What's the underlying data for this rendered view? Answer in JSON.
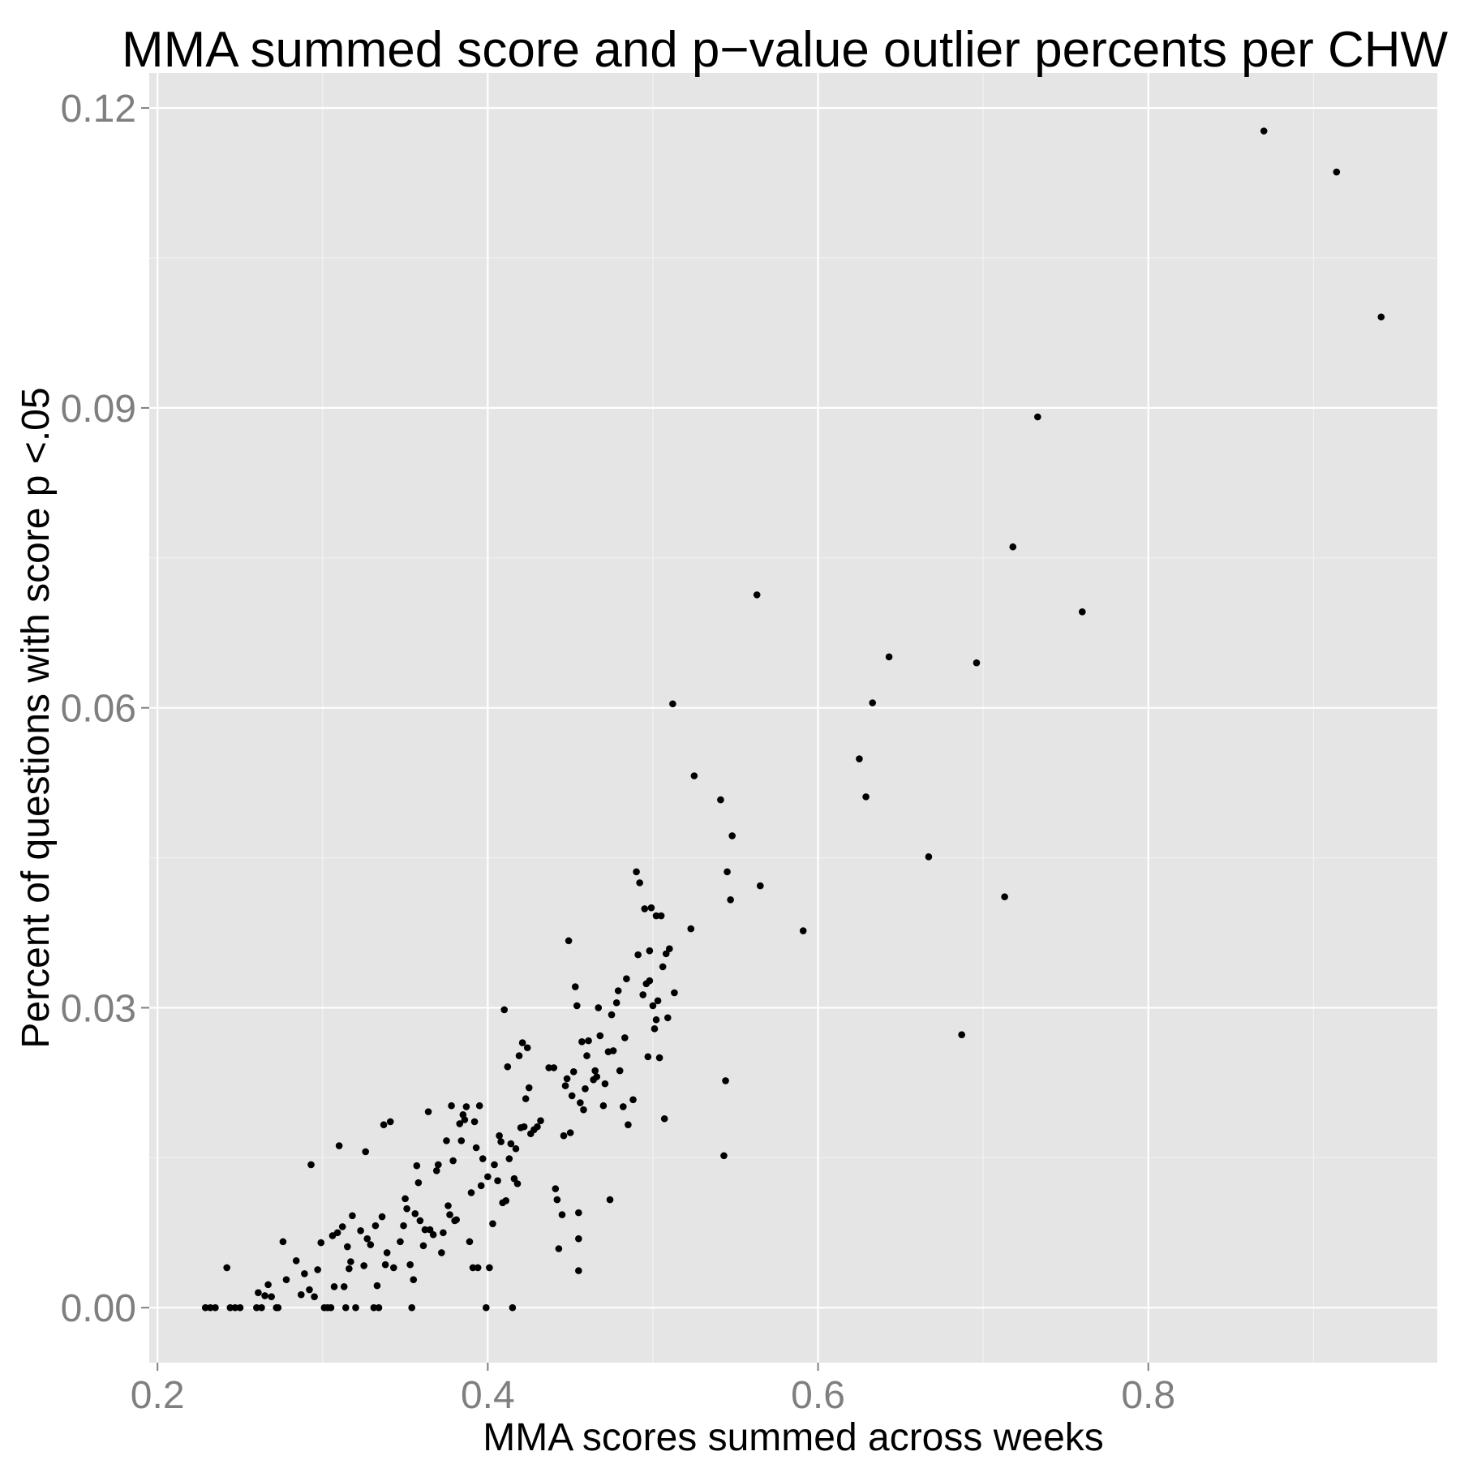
{
  "chart_data": {
    "type": "scatter",
    "title": "MMA summed score and p−value outlier percents per CHW",
    "xlabel": "MMA scores summed across weeks",
    "ylabel": "Percent of questions with score p <.05",
    "xlim": [
      0.195,
      0.975
    ],
    "ylim": [
      -0.0055,
      0.1235
    ],
    "x_ticks": [
      0.2,
      0.4,
      0.6,
      0.8
    ],
    "x_tick_labels": [
      "0.2",
      "0.4",
      "0.6",
      "0.8"
    ],
    "y_ticks": [
      0.0,
      0.03,
      0.06,
      0.09,
      0.12
    ],
    "y_tick_labels": [
      "0.00",
      "0.03",
      "0.06",
      "0.09",
      "0.12"
    ],
    "grid": true,
    "panel_color": "#e5e5e5",
    "point_color": "#000000",
    "series": [
      {
        "points": [
          [
            0.229,
            0.0
          ],
          [
            0.232,
            0.0
          ],
          [
            0.235,
            0.0
          ],
          [
            0.242,
            0.004
          ],
          [
            0.244,
            0.0
          ],
          [
            0.247,
            0.0
          ],
          [
            0.25,
            0.0
          ],
          [
            0.26,
            0.0
          ],
          [
            0.261,
            0.0015
          ],
          [
            0.263,
            0.0
          ],
          [
            0.265,
            0.0012
          ],
          [
            0.267,
            0.0023
          ],
          [
            0.269,
            0.0011
          ],
          [
            0.272,
            0.0
          ],
          [
            0.273,
            0.0
          ],
          [
            0.276,
            0.0066
          ],
          [
            0.278,
            0.0028
          ],
          [
            0.284,
            0.0047
          ],
          [
            0.287,
            0.0013
          ],
          [
            0.289,
            0.0034
          ],
          [
            0.292,
            0.0018
          ],
          [
            0.293,
            0.0143
          ],
          [
            0.295,
            0.0011
          ],
          [
            0.297,
            0.0038
          ],
          [
            0.299,
            0.0065
          ],
          [
            0.301,
            0.0
          ],
          [
            0.303,
            0.0
          ],
          [
            0.305,
            0.0
          ],
          [
            0.306,
            0.0072
          ],
          [
            0.307,
            0.0021
          ],
          [
            0.309,
            0.0075
          ],
          [
            0.31,
            0.0162
          ],
          [
            0.312,
            0.0081
          ],
          [
            0.313,
            0.0021
          ],
          [
            0.314,
            0.0
          ],
          [
            0.315,
            0.0061
          ],
          [
            0.316,
            0.0039
          ],
          [
            0.317,
            0.0046
          ],
          [
            0.318,
            0.0092
          ],
          [
            0.32,
            0.0
          ],
          [
            0.323,
            0.0077
          ],
          [
            0.325,
            0.0042
          ],
          [
            0.326,
            0.0156
          ],
          [
            0.327,
            0.0069
          ],
          [
            0.329,
            0.0063
          ],
          [
            0.331,
            0.0
          ],
          [
            0.332,
            0.0082
          ],
          [
            0.333,
            0.0022
          ],
          [
            0.334,
            0.0
          ],
          [
            0.336,
            0.0091
          ],
          [
            0.337,
            0.0183
          ],
          [
            0.338,
            0.0043
          ],
          [
            0.339,
            0.0055
          ],
          [
            0.341,
            0.0186
          ],
          [
            0.343,
            0.004
          ],
          [
            0.347,
            0.0066
          ],
          [
            0.349,
            0.0082
          ],
          [
            0.35,
            0.0109
          ],
          [
            0.351,
            0.0099
          ],
          [
            0.353,
            0.0043
          ],
          [
            0.354,
            0.0
          ],
          [
            0.355,
            0.0028
          ],
          [
            0.356,
            0.0094
          ],
          [
            0.357,
            0.0142
          ],
          [
            0.358,
            0.0125
          ],
          [
            0.359,
            0.0087
          ],
          [
            0.361,
            0.0062
          ],
          [
            0.362,
            0.0078
          ],
          [
            0.364,
            0.0196
          ],
          [
            0.365,
            0.0078
          ],
          [
            0.367,
            0.0073
          ],
          [
            0.369,
            0.0137
          ],
          [
            0.37,
            0.0143
          ],
          [
            0.372,
            0.0055
          ],
          [
            0.373,
            0.0075
          ],
          [
            0.375,
            0.0167
          ],
          [
            0.376,
            0.0102
          ],
          [
            0.377,
            0.0093
          ],
          [
            0.378,
            0.0202
          ],
          [
            0.379,
            0.0147
          ],
          [
            0.38,
            0.0087
          ],
          [
            0.381,
            0.0088
          ],
          [
            0.383,
            0.0184
          ],
          [
            0.384,
            0.0167
          ],
          [
            0.385,
            0.0193
          ],
          [
            0.386,
            0.0188
          ],
          [
            0.387,
            0.0201
          ],
          [
            0.389,
            0.0066
          ],
          [
            0.39,
            0.0115
          ],
          [
            0.391,
            0.004
          ],
          [
            0.392,
            0.0186
          ],
          [
            0.393,
            0.016
          ],
          [
            0.394,
            0.004
          ],
          [
            0.395,
            0.0202
          ],
          [
            0.396,
            0.0122
          ],
          [
            0.397,
            0.0149
          ],
          [
            0.399,
            0.0
          ],
          [
            0.4,
            0.0131
          ],
          [
            0.401,
            0.004
          ],
          [
            0.403,
            0.0084
          ],
          [
            0.404,
            0.0143
          ],
          [
            0.406,
            0.0127
          ],
          [
            0.407,
            0.0172
          ],
          [
            0.408,
            0.0166
          ],
          [
            0.409,
            0.0105
          ],
          [
            0.41,
            0.0298
          ],
          [
            0.411,
            0.0107
          ],
          [
            0.412,
            0.0241
          ],
          [
            0.413,
            0.0149
          ],
          [
            0.414,
            0.0164
          ],
          [
            0.415,
            0.0
          ],
          [
            0.416,
            0.0129
          ],
          [
            0.417,
            0.0159
          ],
          [
            0.418,
            0.0124
          ],
          [
            0.419,
            0.0252
          ],
          [
            0.42,
            0.018
          ],
          [
            0.421,
            0.0265
          ],
          [
            0.422,
            0.0181
          ],
          [
            0.423,
            0.0209
          ],
          [
            0.424,
            0.026
          ],
          [
            0.425,
            0.022
          ],
          [
            0.426,
            0.0174
          ],
          [
            0.428,
            0.0178
          ],
          [
            0.43,
            0.0181
          ],
          [
            0.432,
            0.0187
          ],
          [
            0.437,
            0.024
          ],
          [
            0.44,
            0.024
          ],
          [
            0.441,
            0.0119
          ],
          [
            0.442,
            0.0108
          ],
          [
            0.443,
            0.0059
          ],
          [
            0.445,
            0.0093
          ],
          [
            0.446,
            0.0172
          ],
          [
            0.447,
            0.0222
          ],
          [
            0.448,
            0.0229
          ],
          [
            0.449,
            0.0367
          ],
          [
            0.45,
            0.0175
          ],
          [
            0.451,
            0.0212
          ],
          [
            0.452,
            0.0236
          ],
          [
            0.453,
            0.0321
          ],
          [
            0.454,
            0.0302
          ],
          [
            0.455,
            0.0095
          ],
          [
            0.455,
            0.0069
          ],
          [
            0.455,
            0.0037
          ],
          [
            0.456,
            0.0205
          ],
          [
            0.457,
            0.0266
          ],
          [
            0.458,
            0.0198
          ],
          [
            0.459,
            0.0219
          ],
          [
            0.46,
            0.0252
          ],
          [
            0.461,
            0.0267
          ],
          [
            0.464,
            0.0228
          ],
          [
            0.465,
            0.0237
          ],
          [
            0.466,
            0.0231
          ],
          [
            0.467,
            0.03
          ],
          [
            0.468,
            0.0272
          ],
          [
            0.47,
            0.0202
          ],
          [
            0.471,
            0.0224
          ],
          [
            0.473,
            0.0256
          ],
          [
            0.474,
            0.0108
          ],
          [
            0.475,
            0.0293
          ],
          [
            0.476,
            0.0257
          ],
          [
            0.478,
            0.0305
          ],
          [
            0.479,
            0.0317
          ],
          [
            0.48,
            0.0237
          ],
          [
            0.482,
            0.0201
          ],
          [
            0.483,
            0.027
          ],
          [
            0.484,
            0.0329
          ],
          [
            0.485,
            0.0183
          ],
          [
            0.488,
            0.0208
          ],
          [
            0.49,
            0.0436
          ],
          [
            0.491,
            0.0353
          ],
          [
            0.492,
            0.0425
          ],
          [
            0.494,
            0.0313
          ],
          [
            0.495,
            0.0399
          ],
          [
            0.496,
            0.0324
          ],
          [
            0.497,
            0.0251
          ],
          [
            0.498,
            0.0327
          ],
          [
            0.498,
            0.0357
          ],
          [
            0.499,
            0.04
          ],
          [
            0.5,
            0.0302
          ],
          [
            0.501,
            0.0279
          ],
          [
            0.502,
            0.0288
          ],
          [
            0.502,
            0.0392
          ],
          [
            0.503,
            0.0307
          ],
          [
            0.504,
            0.025
          ],
          [
            0.505,
            0.0392
          ],
          [
            0.506,
            0.0341
          ],
          [
            0.507,
            0.0189
          ],
          [
            0.508,
            0.0354
          ],
          [
            0.509,
            0.029
          ],
          [
            0.51,
            0.0359
          ],
          [
            0.512,
            0.0604
          ],
          [
            0.513,
            0.0315
          ],
          [
            0.523,
            0.0379
          ],
          [
            0.525,
            0.0532
          ],
          [
            0.541,
            0.0508
          ],
          [
            0.543,
            0.0152
          ],
          [
            0.544,
            0.0227
          ],
          [
            0.545,
            0.0436
          ],
          [
            0.547,
            0.0408
          ],
          [
            0.548,
            0.0472
          ],
          [
            0.563,
            0.0713
          ],
          [
            0.565,
            0.0422
          ],
          [
            0.591,
            0.0377
          ],
          [
            0.625,
            0.0549
          ],
          [
            0.629,
            0.0511
          ],
          [
            0.633,
            0.0605
          ],
          [
            0.643,
            0.0651
          ],
          [
            0.667,
            0.0451
          ],
          [
            0.687,
            0.0273
          ],
          [
            0.696,
            0.0645
          ],
          [
            0.713,
            0.0411
          ],
          [
            0.718,
            0.0761
          ],
          [
            0.733,
            0.0891
          ],
          [
            0.76,
            0.0696
          ],
          [
            0.87,
            0.1177
          ],
          [
            0.914,
            0.1136
          ],
          [
            0.941,
            0.0991
          ]
        ]
      }
    ]
  }
}
